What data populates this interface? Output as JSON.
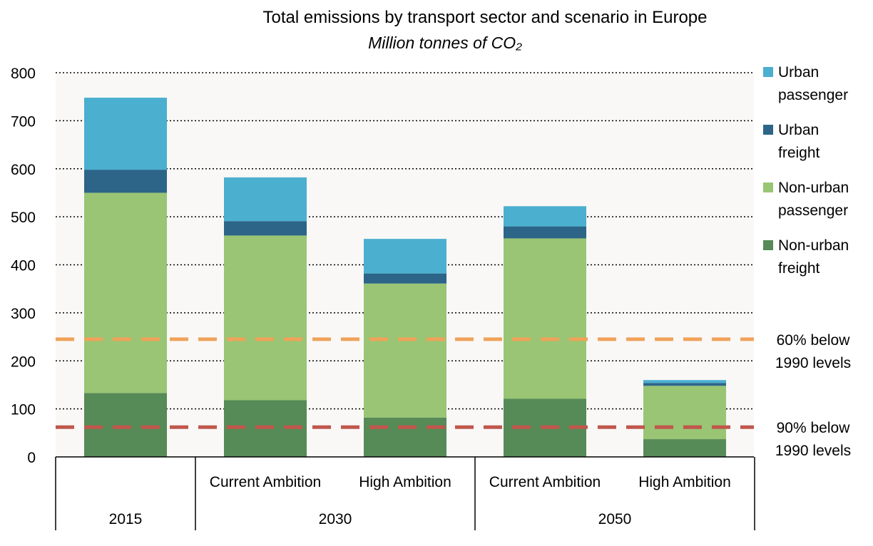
{
  "chart_data": {
    "type": "bar",
    "stacked": true,
    "title": "Total emissions by transport sector and scenario in Europe",
    "subtitle": "Million tonnes of CO₂",
    "ylim": [
      0,
      800
    ],
    "yticks": [
      "0",
      "100",
      "200",
      "300",
      "400",
      "500",
      "600",
      "700",
      "800"
    ],
    "grid": true,
    "legend_position": "right",
    "groups": [
      {
        "label": "2015",
        "categories": [
          ""
        ]
      },
      {
        "label": "2030",
        "categories": [
          "Current Ambition",
          "High Ambition"
        ]
      },
      {
        "label": "2050",
        "categories": [
          "Current Ambition",
          "High Ambition"
        ]
      }
    ],
    "series": [
      {
        "name": "Non-urban freight",
        "color": "#568a57",
        "values": [
          133,
          118,
          82,
          121,
          37
        ]
      },
      {
        "name": "Non-urban passenger",
        "color": "#99c574",
        "values": [
          417,
          343,
          279,
          334,
          111
        ]
      },
      {
        "name": "Urban freight",
        "color": "#2c6588",
        "values": [
          48,
          30,
          21,
          25,
          6
        ]
      },
      {
        "name": "Urban passenger",
        "color": "#4bafd0",
        "values": [
          150,
          91,
          72,
          42,
          6
        ]
      }
    ],
    "legend_order": [
      "Urban passenger",
      "Urban freight",
      "Non-urban passenger",
      "Non-urban freight"
    ],
    "reference_lines": [
      {
        "value": 245,
        "label_line1": "60%  below",
        "label_line2": "1990 levels",
        "color": "#f0a25a"
      },
      {
        "value": 62,
        "label_line1": "90%  below",
        "label_line2": "1990 levels",
        "color": "#c0564c"
      }
    ]
  }
}
